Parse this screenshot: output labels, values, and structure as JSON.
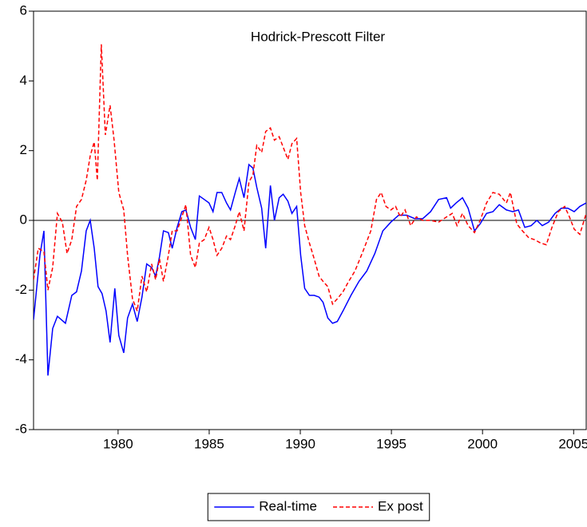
{
  "chart_data": {
    "type": "line",
    "title": "Hodrick-Prescott Filter",
    "xlim": [
      1975.36,
      2005.69
    ],
    "xticks": [
      1980,
      1985,
      1990,
      1995,
      2000,
      2005
    ],
    "ylim": [
      -6,
      6
    ],
    "yticks": [
      -6,
      -4,
      -2,
      0,
      2,
      4,
      6
    ],
    "zero_line": true,
    "legend": "bottom",
    "series": [
      {
        "name": "Real-time",
        "color": "#0000ff",
        "dash": false,
        "x": [
          1975.36,
          1975.71,
          1975.93,
          1976.15,
          1976.41,
          1976.67,
          1977.11,
          1977.46,
          1977.72,
          1977.99,
          1978.25,
          1978.47,
          1978.69,
          1978.9,
          1979.12,
          1979.34,
          1979.56,
          1979.82,
          1980.04,
          1980.31,
          1980.52,
          1980.79,
          1981.05,
          1981.31,
          1981.57,
          1981.84,
          1982.06,
          1982.27,
          1982.49,
          1982.76,
          1982.97,
          1983.24,
          1983.5,
          1983.72,
          1983.98,
          1984.24,
          1984.46,
          1984.73,
          1984.99,
          1985.21,
          1985.43,
          1985.69,
          1985.95,
          1986.17,
          1986.43,
          1986.65,
          1986.91,
          1987.18,
          1987.4,
          1987.61,
          1987.88,
          1988.1,
          1988.36,
          1988.58,
          1988.84,
          1989.06,
          1989.32,
          1989.54,
          1989.8,
          1990.02,
          1990.24,
          1990.5,
          1990.76,
          1991.03,
          1991.25,
          1991.51,
          1991.77,
          1992.03,
          1992.34,
          1992.78,
          1993.22,
          1993.65,
          1994.09,
          1994.53,
          1994.97,
          1995.4,
          1995.84,
          1996.28,
          1996.72,
          1997.15,
          1997.59,
          1998.03,
          1998.25,
          1998.55,
          1998.9,
          1999.21,
          1999.56,
          1999.87,
          2000.22,
          2000.57,
          2000.92,
          2001.31,
          2001.66,
          2001.97,
          2002.32,
          2002.67,
          2002.98,
          2003.28,
          2003.63,
          2003.98,
          2004.33,
          2004.68,
          2005.03,
          2005.34,
          2005.69
        ],
        "values": [
          -2.85,
          -1.0,
          -0.3,
          -4.45,
          -3.1,
          -2.75,
          -2.95,
          -2.15,
          -2.05,
          -1.45,
          -0.3,
          0.0,
          -0.8,
          -1.9,
          -2.1,
          -2.6,
          -3.5,
          -1.95,
          -3.3,
          -3.8,
          -2.8,
          -2.4,
          -2.9,
          -2.2,
          -1.25,
          -1.35,
          -1.6,
          -1.05,
          -0.3,
          -0.35,
          -0.8,
          -0.2,
          0.25,
          0.3,
          -0.2,
          -0.55,
          0.7,
          0.6,
          0.5,
          0.25,
          0.8,
          0.8,
          0.5,
          0.3,
          0.8,
          1.2,
          0.65,
          1.6,
          1.5,
          0.95,
          0.35,
          -0.8,
          1.0,
          0.0,
          0.65,
          0.75,
          0.55,
          0.2,
          0.4,
          -1.0,
          -1.95,
          -2.15,
          -2.15,
          -2.2,
          -2.35,
          -2.8,
          -2.95,
          -2.9,
          -2.6,
          -2.15,
          -1.75,
          -1.45,
          -0.95,
          -0.3,
          -0.05,
          0.15,
          0.15,
          0.05,
          0.05,
          0.25,
          0.6,
          0.65,
          0.35,
          0.5,
          0.65,
          0.35,
          -0.3,
          -0.1,
          0.2,
          0.25,
          0.45,
          0.3,
          0.25,
          0.3,
          -0.2,
          -0.15,
          0.0,
          -0.15,
          -0.05,
          0.2,
          0.35,
          0.35,
          0.25,
          0.4,
          0.5
        ]
      },
      {
        "name": "Ex post",
        "color": "#ff0000",
        "dash": true,
        "x": [
          1975.36,
          1975.62,
          1975.93,
          1976.15,
          1976.41,
          1976.67,
          1976.94,
          1977.2,
          1977.46,
          1977.72,
          1977.99,
          1978.25,
          1978.47,
          1978.69,
          1978.86,
          1979.08,
          1979.3,
          1979.56,
          1979.78,
          1980.04,
          1980.31,
          1980.52,
          1980.79,
          1981.05,
          1981.31,
          1981.57,
          1981.84,
          1982.06,
          1982.27,
          1982.49,
          1982.76,
          1982.97,
          1983.24,
          1983.5,
          1983.72,
          1983.98,
          1984.24,
          1984.46,
          1984.73,
          1984.99,
          1985.21,
          1985.43,
          1985.69,
          1985.95,
          1986.17,
          1986.43,
          1986.65,
          1986.91,
          1987.18,
          1987.4,
          1987.61,
          1987.88,
          1988.1,
          1988.36,
          1988.58,
          1988.84,
          1989.06,
          1989.32,
          1989.54,
          1989.8,
          1990.02,
          1990.24,
          1990.5,
          1990.76,
          1991.03,
          1991.25,
          1991.51,
          1991.77,
          1992.03,
          1992.34,
          1992.6,
          1993,
          1993.43,
          1993.87,
          1994.18,
          1994.44,
          1994.7,
          1994.97,
          1995.23,
          1995.49,
          1995.75,
          1996.06,
          1996.37,
          1996.72,
          1997.15,
          1997.59,
          1998.03,
          1998.34,
          1998.6,
          1998.9,
          1999.21,
          1999.56,
          1999.87,
          2000.22,
          2000.57,
          2000.92,
          2001.31,
          2001.53,
          2001.88,
          2002.19,
          2002.54,
          2002.84,
          2003.19,
          2003.5,
          2003.81,
          2004.16,
          2004.51,
          2004.77,
          2005.03,
          2005.34,
          2005.69
        ],
        "values": [
          -1.7,
          -0.8,
          -0.9,
          -2.0,
          -1.35,
          0.2,
          -0.05,
          -0.95,
          -0.55,
          0.4,
          0.6,
          1.15,
          1.85,
          2.25,
          1.15,
          5.05,
          2.45,
          3.3,
          2.3,
          0.8,
          0.3,
          -1.0,
          -2.25,
          -2.6,
          -1.6,
          -2.05,
          -1.25,
          -1.7,
          -1.1,
          -1.75,
          -1.0,
          -0.3,
          -0.3,
          0.1,
          0.45,
          -1.0,
          -1.35,
          -0.65,
          -0.55,
          -0.2,
          -0.55,
          -1.0,
          -0.8,
          -0.45,
          -0.55,
          -0.15,
          0.25,
          -0.3,
          1.1,
          1.3,
          2.15,
          1.95,
          2.55,
          2.65,
          2.3,
          2.4,
          2.1,
          1.75,
          2.2,
          2.35,
          0.8,
          -0.15,
          -0.65,
          -1.1,
          -1.6,
          -1.75,
          -1.9,
          -2.4,
          -2.25,
          -2.05,
          -1.8,
          -1.45,
          -0.9,
          -0.3,
          0.6,
          0.8,
          0.4,
          0.3,
          0.4,
          0.1,
          0.3,
          -0.15,
          0.1,
          0.0,
          0.0,
          -0.05,
          0.1,
          0.2,
          -0.15,
          0.2,
          -0.15,
          -0.35,
          0.0,
          0.5,
          0.8,
          0.75,
          0.5,
          0.8,
          -0.1,
          -0.3,
          -0.5,
          -0.55,
          -0.65,
          -0.7,
          -0.2,
          0.25,
          0.4,
          0.1,
          -0.25,
          -0.4,
          0.2
        ]
      }
    ]
  }
}
